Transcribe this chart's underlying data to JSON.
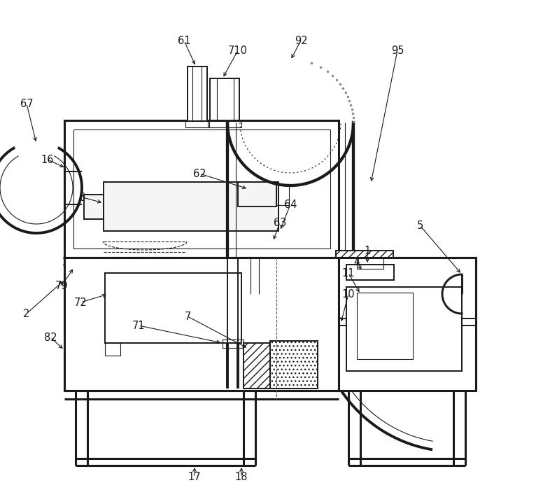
{
  "bg_color": "#ffffff",
  "line_color": "#1a1a1a",
  "lw_thin": 0.8,
  "lw_med": 1.4,
  "lw_thick": 2.2,
  "fig_width": 7.76,
  "fig_height": 7.2
}
